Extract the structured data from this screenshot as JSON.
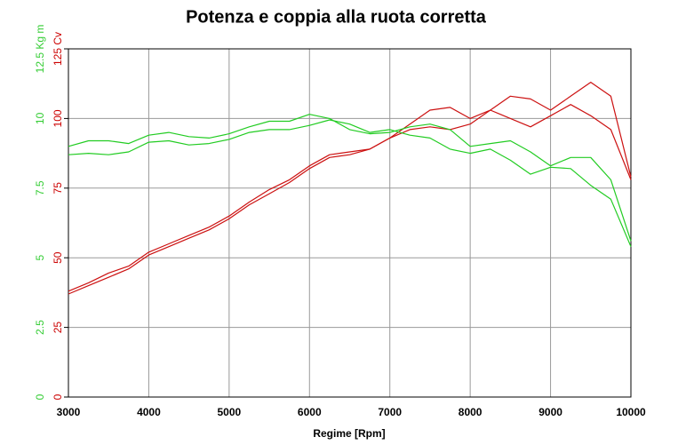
{
  "chart_data": {
    "type": "line",
    "title": "Potenza e coppia alla ruota corretta",
    "x_label": "Regime [Rpm]",
    "x": [
      3000,
      3250,
      3500,
      3750,
      4000,
      4250,
      4500,
      4750,
      5000,
      5250,
      5500,
      5750,
      6000,
      6250,
      6500,
      6750,
      7000,
      7250,
      7500,
      7750,
      8000,
      8250,
      8500,
      8750,
      9000,
      9250,
      9500,
      9750,
      10000
    ],
    "xlim": [
      3000,
      10000
    ],
    "xticks": [
      3000,
      4000,
      5000,
      6000,
      7000,
      8000,
      9000,
      10000
    ],
    "ylim": [
      0,
      125
    ],
    "yticks": [
      0,
      25,
      50,
      75,
      100,
      {
        "value": 125,
        "label": "125 Cv"
      }
    ],
    "y_color": "#cc0000",
    "y2lim": [
      0,
      12.5
    ],
    "y2ticks": [
      0,
      2.5,
      5,
      7.5,
      10,
      {
        "value": 12.5,
        "label": "12.5 Kg m"
      }
    ],
    "y2_color": "#33cc33",
    "grid": true,
    "series": [
      {
        "color": "#cc1111",
        "values": [
          38,
          41,
          44.5,
          47,
          52,
          55,
          58,
          61,
          65,
          70,
          74.5,
          78,
          83,
          87,
          88,
          89,
          93,
          98,
          103,
          104,
          100,
          103,
          108,
          107,
          103,
          108,
          113,
          108,
          79
        ]
      },
      {
        "color": "#cc1111",
        "values": [
          37,
          40,
          43,
          46,
          51,
          54,
          57,
          60,
          64,
          69,
          73,
          77,
          82,
          86,
          87,
          89,
          93,
          96,
          97,
          96,
          98,
          103,
          100,
          97,
          101,
          105,
          101,
          96,
          78
        ]
      },
      {
        "color": "#22cc22",
        "values": [
          9.0,
          9.2,
          9.2,
          9.1,
          9.4,
          9.5,
          9.35,
          9.3,
          9.45,
          9.7,
          9.9,
          9.9,
          10.15,
          10.0,
          9.6,
          9.45,
          9.5,
          9.7,
          9.8,
          9.6,
          9.0,
          9.1,
          9.2,
          8.8,
          8.3,
          8.6,
          8.6,
          7.8,
          5.6
        ],
        "axis": "y2"
      },
      {
        "color": "#22cc22",
        "values": [
          8.7,
          8.75,
          8.7,
          8.8,
          9.15,
          9.2,
          9.05,
          9.1,
          9.25,
          9.5,
          9.6,
          9.6,
          9.75,
          9.95,
          9.8,
          9.5,
          9.6,
          9.4,
          9.3,
          8.9,
          8.75,
          8.9,
          8.5,
          8.0,
          8.25,
          8.2,
          7.6,
          7.1,
          5.4
        ],
        "axis": "y2"
      }
    ]
  }
}
